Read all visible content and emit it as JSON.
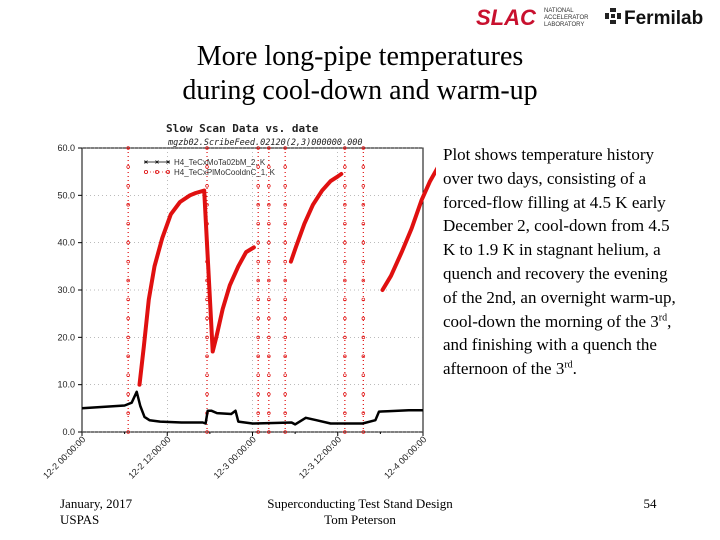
{
  "logos": {
    "slac": "SLAC",
    "slac_sub": [
      "NATIONAL",
      "ACCELERATOR",
      "LABORATORY"
    ],
    "fermilab": "Fermilab",
    "brand_red": "#c8102e"
  },
  "slide": {
    "title_line1": "More long-pipe temperatures",
    "title_line2": "during cool-down and warm-up",
    "description": {
      "before_first_sup": "Plot shows temperature history over two days, consisting of a forced-flow filling at 4.5 K early December 2, cool-down from 4.5 K to 1.9 K in stagnant helium, a quench and recovery the evening of the 2nd, an overnight warm-up, cool-down the morning of the 3",
      "sup1": "rd",
      "middle": ", and finishing with a quench the afternoon of the 3",
      "sup2": "rd",
      "end": "."
    }
  },
  "footer": {
    "left_line1": "January, 2017",
    "left_line2": "USPAS",
    "center_line1": "Superconducting Test Stand Design",
    "center_line2": "Tom Peterson",
    "page_number": "54"
  },
  "chart_data": {
    "type": "line",
    "title": "Slow Scan Data vs. date",
    "subtitle": "mgzb02.ScribeFeed.02120(2,3)000000.000",
    "ylim": [
      0,
      60
    ],
    "y_ticks": [
      "0.0",
      "10.0",
      "20.0",
      "30.0",
      "40.0",
      "50.0",
      "60.0"
    ],
    "x_tick_labels": [
      "12-2 00:00:00",
      "12-2 12:00:00",
      "12-3 00:00:00",
      "12-3 12:00:00",
      "12-4 00:00:00"
    ],
    "grid": true,
    "legend_position": "top-left",
    "series": [
      {
        "name": "H4_TeCxMoTa02bM_2, K",
        "color": "#000000",
        "points": [
          [
            0.0,
            5.0
          ],
          [
            3.0,
            5.3
          ],
          [
            6.0,
            5.6
          ],
          [
            7.0,
            6.2
          ],
          [
            7.7,
            8.5
          ],
          [
            8.2,
            5.5
          ],
          [
            8.8,
            3.2
          ],
          [
            9.5,
            2.5
          ],
          [
            11.0,
            2.2
          ],
          [
            14.0,
            2.0
          ],
          [
            17.0,
            2.0
          ],
          [
            17.4,
            1.8
          ],
          [
            17.7,
            4.5
          ],
          [
            18.2,
            4.5
          ],
          [
            19.0,
            4.0
          ],
          [
            21.0,
            3.8
          ],
          [
            21.6,
            4.5
          ],
          [
            22.0,
            2.2
          ],
          [
            24.0,
            1.8
          ],
          [
            27.0,
            1.9
          ],
          [
            29.5,
            2.0
          ],
          [
            30.0,
            1.6
          ],
          [
            31.5,
            3.0
          ],
          [
            33.0,
            2.5
          ],
          [
            35.0,
            1.8
          ],
          [
            38.0,
            1.8
          ],
          [
            39.5,
            1.8
          ],
          [
            41.3,
            2.5
          ],
          [
            41.8,
            4.3
          ],
          [
            43.0,
            4.4
          ],
          [
            46.0,
            4.6
          ],
          [
            48.0,
            4.6
          ]
        ]
      },
      {
        "name": "H4_TeCxPlMoCooldnC_1, K",
        "color": "#e01010",
        "points": [
          [
            8.1,
            10.0
          ],
          [
            8.7,
            18.0
          ],
          [
            9.4,
            28.0
          ],
          [
            10.2,
            35.0
          ],
          [
            11.3,
            41.0
          ],
          [
            12.5,
            46.0
          ],
          [
            13.8,
            48.6
          ],
          [
            15.2,
            50.0
          ],
          [
            16.0,
            50.5
          ],
          [
            17.2,
            51.0
          ],
          [
            18.4,
            17.0
          ],
          [
            18.9,
            20.0
          ],
          [
            19.8,
            26.0
          ],
          [
            20.8,
            31.0
          ],
          [
            22.0,
            35.0
          ],
          [
            23.1,
            38.0
          ],
          [
            24.2,
            39.0
          ],
          [
            29.4,
            36.0
          ],
          [
            30.1,
            39.0
          ],
          [
            31.3,
            44.0
          ],
          [
            32.5,
            48.0
          ],
          [
            33.8,
            51.0
          ],
          [
            35.0,
            53.0
          ],
          [
            36.0,
            54.0
          ],
          [
            36.5,
            54.5
          ],
          [
            42.3,
            30.0
          ],
          [
            43.5,
            33.0
          ],
          [
            45.0,
            38.0
          ],
          [
            46.4,
            43.0
          ],
          [
            47.8,
            49.0
          ],
          [
            49.0,
            53.0
          ],
          [
            50.5,
            57.0
          ],
          [
            51.1,
            58.0
          ]
        ]
      }
    ],
    "spikes_to_60": [
      6.5,
      17.6,
      24.8,
      26.3,
      28.6,
      37.0,
      39.6
    ]
  }
}
